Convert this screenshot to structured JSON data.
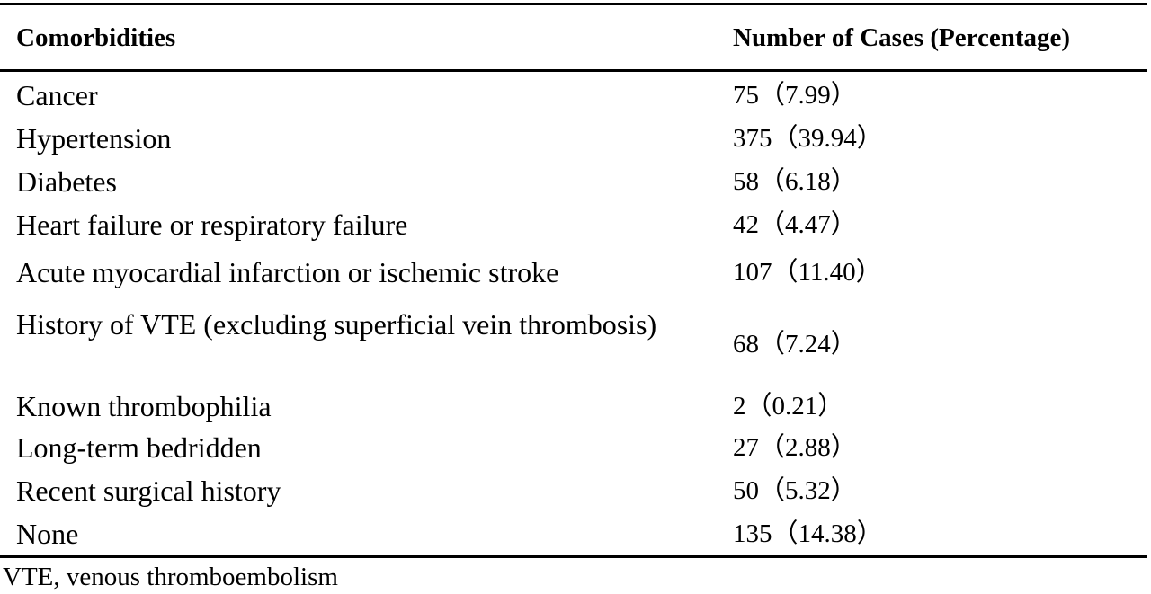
{
  "table": {
    "headers": {
      "comorbidities": "Comorbidities",
      "cases": "Number of Cases (Percentage)"
    },
    "rows": [
      {
        "comorbidity": "Cancer",
        "cases": "75（7.99）"
      },
      {
        "comorbidity": "Hypertension",
        "cases": "375（39.94）"
      },
      {
        "comorbidity": "Diabetes",
        "cases": "58（6.18）"
      },
      {
        "comorbidity": "Heart failure or respiratory failure",
        "cases": "42（4.47）"
      },
      {
        "comorbidity": "Acute myocardial infarction or ischemic stroke",
        "cases": "107（11.40）"
      },
      {
        "comorbidity": "History of VTE (excluding superficial vein thrombosis)",
        "cases": "68（7.24）"
      },
      {
        "comorbidity": "Known thrombophilia",
        "cases": "2（0.21）"
      },
      {
        "comorbidity": "Long-term bedridden",
        "cases": "27（2.88）"
      },
      {
        "comorbidity": "Recent surgical history",
        "cases": "50（5.32）"
      },
      {
        "comorbidity": "None",
        "cases": "135（14.38）"
      }
    ],
    "footnote": "VTE, venous thromboembolism"
  }
}
